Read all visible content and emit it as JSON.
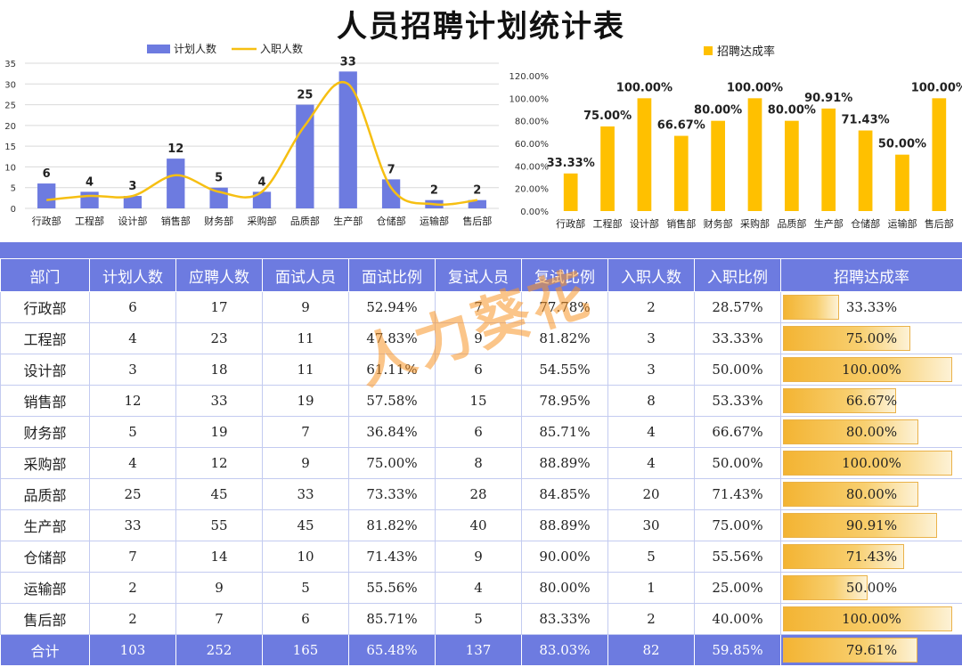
{
  "title": "人员招聘计划统计表",
  "watermark": "人力葵花",
  "colors": {
    "plan_bar": "#6d7be0",
    "hire_line": "#f6bf12",
    "rate_bar": "#ffc000",
    "header_bg": "#6d7be0"
  },
  "chart_data": [
    {
      "type": "bar",
      "categories": [
        "行政部",
        "工程部",
        "设计部",
        "销售部",
        "财务部",
        "采购部",
        "品质部",
        "生产部",
        "仓储部",
        "运输部",
        "售后部"
      ],
      "series": [
        {
          "name": "计划人数",
          "type": "bar",
          "values": [
            6,
            4,
            3,
            12,
            5,
            4,
            25,
            33,
            7,
            2,
            2
          ]
        },
        {
          "name": "入职人数",
          "type": "line",
          "values": [
            2,
            3,
            3,
            8,
            4,
            4,
            20,
            30,
            5,
            1,
            2
          ]
        }
      ],
      "data_labels": [
        "6",
        "4",
        "3",
        "12",
        "5",
        "4",
        "25",
        "33",
        "7",
        "2",
        "2"
      ],
      "yticks": [
        "0",
        "5",
        "10",
        "15",
        "20",
        "25",
        "30",
        "35"
      ],
      "ylim": [
        0,
        35
      ],
      "grid": true,
      "legend": "top-center"
    },
    {
      "type": "bar",
      "categories": [
        "行政部",
        "工程部",
        "设计部",
        "销售部",
        "财务部",
        "采购部",
        "品质部",
        "生产部",
        "仓储部",
        "运输部",
        "售后部"
      ],
      "series": [
        {
          "name": "招聘达成率",
          "values": [
            33.33,
            75.0,
            100.0,
            66.67,
            80.0,
            100.0,
            80.0,
            90.91,
            71.43,
            50.0,
            100.0
          ]
        }
      ],
      "data_labels": [
        "33.33%",
        "75.00%",
        "100.00%",
        "66.67%",
        "80.00%",
        "100.00%",
        "80.00%",
        "90.91%",
        "71.43%",
        "50.00%",
        "100.00%"
      ],
      "yticks": [
        "0.00%",
        "20.00%",
        "40.00%",
        "60.00%",
        "80.00%",
        "100.00%",
        "120.00%"
      ],
      "ylim": [
        0,
        120
      ],
      "grid": false,
      "legend": "top-center"
    }
  ],
  "table": {
    "headers": [
      "部门",
      "计划人数",
      "应聘人数",
      "面试人员",
      "面试比例",
      "复试人员",
      "复试比例",
      "入职人数",
      "入职比例",
      "招聘达成率"
    ],
    "rows": [
      [
        "行政部",
        "6",
        "17",
        "9",
        "52.94%",
        "7",
        "77.78%",
        "2",
        "28.57%",
        "33.33%"
      ],
      [
        "工程部",
        "4",
        "23",
        "11",
        "47.83%",
        "9",
        "81.82%",
        "3",
        "33.33%",
        "75.00%"
      ],
      [
        "设计部",
        "3",
        "18",
        "11",
        "61.11%",
        "6",
        "54.55%",
        "3",
        "50.00%",
        "100.00%"
      ],
      [
        "销售部",
        "12",
        "33",
        "19",
        "57.58%",
        "15",
        "78.95%",
        "8",
        "53.33%",
        "66.67%"
      ],
      [
        "财务部",
        "5",
        "19",
        "7",
        "36.84%",
        "6",
        "85.71%",
        "4",
        "66.67%",
        "80.00%"
      ],
      [
        "采购部",
        "4",
        "12",
        "9",
        "75.00%",
        "8",
        "88.89%",
        "4",
        "50.00%",
        "100.00%"
      ],
      [
        "品质部",
        "25",
        "45",
        "33",
        "73.33%",
        "28",
        "84.85%",
        "20",
        "71.43%",
        "80.00%"
      ],
      [
        "生产部",
        "33",
        "55",
        "45",
        "81.82%",
        "40",
        "88.89%",
        "30",
        "75.00%",
        "90.91%"
      ],
      [
        "仓储部",
        "7",
        "14",
        "10",
        "71.43%",
        "9",
        "90.00%",
        "5",
        "55.56%",
        "71.43%"
      ],
      [
        "运输部",
        "2",
        "9",
        "5",
        "55.56%",
        "4",
        "80.00%",
        "1",
        "25.00%",
        "50.00%"
      ],
      [
        "售后部",
        "2",
        "7",
        "6",
        "85.71%",
        "5",
        "83.33%",
        "2",
        "40.00%",
        "100.00%"
      ]
    ],
    "rates": [
      33.33,
      75.0,
      100.0,
      66.67,
      80.0,
      100.0,
      80.0,
      90.91,
      71.43,
      50.0,
      100.0
    ],
    "total": [
      "合计",
      "103",
      "252",
      "165",
      "65.48%",
      "137",
      "83.03%",
      "82",
      "59.85%",
      "79.61%"
    ],
    "total_rate": 79.61
  }
}
